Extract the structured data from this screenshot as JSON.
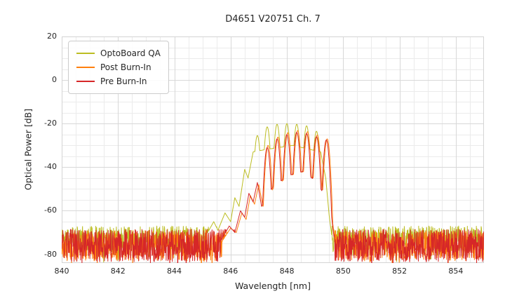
{
  "chart_data": {
    "type": "line",
    "title": "D4651 V20751 Ch. 7",
    "xlabel": "Wavelength [nm]",
    "ylabel": "Optical Power [dB]",
    "xlim": [
      840,
      855
    ],
    "ylim": [
      -84,
      20
    ],
    "x_major_ticks": [
      840,
      842,
      844,
      846,
      848,
      850,
      852,
      854
    ],
    "x_minor_step": 0.5,
    "y_major_ticks": [
      20,
      0,
      -20,
      -40,
      -60,
      -80
    ],
    "y_minor_step": 5,
    "grid": true,
    "grid_major_color": "#d8d8d8",
    "grid_minor_color": "#ebebeb",
    "legend_position": "upper-left",
    "sample_step": 0.01,
    "series": [
      {
        "name": "OptoBoard QA",
        "color": "#bcbd22",
        "seed": 11,
        "noise": {
          "floor": -73,
          "amp": 6
        },
        "mode_k": 30,
        "mode_hw": 0.175,
        "base_env": [
          [
            845.1,
            -72
          ],
          [
            845.4,
            -65
          ],
          [
            845.55,
            -69
          ],
          [
            845.8,
            -61
          ],
          [
            846.0,
            -65
          ],
          [
            846.15,
            -54
          ],
          [
            846.3,
            -58
          ],
          [
            846.5,
            -41
          ],
          [
            846.62,
            -45
          ],
          [
            846.8,
            -33
          ],
          [
            847.2,
            -32
          ],
          [
            848.2,
            -30
          ],
          [
            849.2,
            -33
          ],
          [
            849.38,
            -45
          ],
          [
            849.5,
            -62
          ],
          [
            849.6,
            -72
          ]
        ],
        "modes": [
          [
            846.95,
            -25.5
          ],
          [
            847.3,
            -21.5
          ],
          [
            847.65,
            -20.3
          ],
          [
            848.0,
            -20.0
          ],
          [
            848.35,
            -20.3
          ],
          [
            848.7,
            -21.0
          ],
          [
            849.05,
            -23.5
          ]
        ]
      },
      {
        "name": "Post Burn-In",
        "color": "#ff7f0e",
        "seed": 22,
        "noise": {
          "floor": -76,
          "amp": 7
        },
        "mode_k": 30,
        "mode_hw": 0.175,
        "base_env": [
          [
            845.7,
            -74
          ],
          [
            846.0,
            -68
          ],
          [
            846.2,
            -70
          ],
          [
            846.4,
            -61
          ],
          [
            846.55,
            -64
          ],
          [
            846.7,
            -53
          ],
          [
            846.85,
            -57
          ],
          [
            847.0,
            -48
          ],
          [
            847.15,
            -58
          ],
          [
            847.5,
            -50
          ],
          [
            848.05,
            -44
          ],
          [
            848.6,
            -42
          ],
          [
            849.05,
            -46
          ],
          [
            849.35,
            -52
          ],
          [
            849.5,
            -55
          ],
          [
            849.62,
            -65
          ],
          [
            849.72,
            -75
          ]
        ],
        "modes": [
          [
            847.33,
            -30.0
          ],
          [
            847.68,
            -26.2
          ],
          [
            848.03,
            -24.2
          ],
          [
            848.38,
            -23.2
          ],
          [
            848.73,
            -23.7
          ],
          [
            849.08,
            -25.2
          ],
          [
            849.43,
            -27.0
          ]
        ]
      },
      {
        "name": "Pre Burn-In",
        "color": "#d62728",
        "seed": 33,
        "noise": {
          "floor": -76,
          "amp": 7.5
        },
        "mode_k": 30,
        "mode_hw": 0.175,
        "base_env": [
          [
            845.65,
            -74
          ],
          [
            845.95,
            -67
          ],
          [
            846.15,
            -70
          ],
          [
            846.35,
            -60
          ],
          [
            846.5,
            -63
          ],
          [
            846.65,
            -52
          ],
          [
            846.8,
            -56
          ],
          [
            846.95,
            -47
          ],
          [
            847.1,
            -58
          ],
          [
            847.45,
            -50
          ],
          [
            848.0,
            -44
          ],
          [
            848.55,
            -42
          ],
          [
            849.0,
            -46
          ],
          [
            849.3,
            -52
          ],
          [
            849.45,
            -50
          ],
          [
            849.58,
            -62
          ],
          [
            849.7,
            -75
          ]
        ],
        "modes": [
          [
            847.3,
            -31.0
          ],
          [
            847.65,
            -27.0
          ],
          [
            848.0,
            -25.0
          ],
          [
            848.35,
            -24.0
          ],
          [
            848.7,
            -24.5
          ],
          [
            849.05,
            -26.0
          ],
          [
            849.4,
            -27.5
          ]
        ]
      }
    ]
  }
}
